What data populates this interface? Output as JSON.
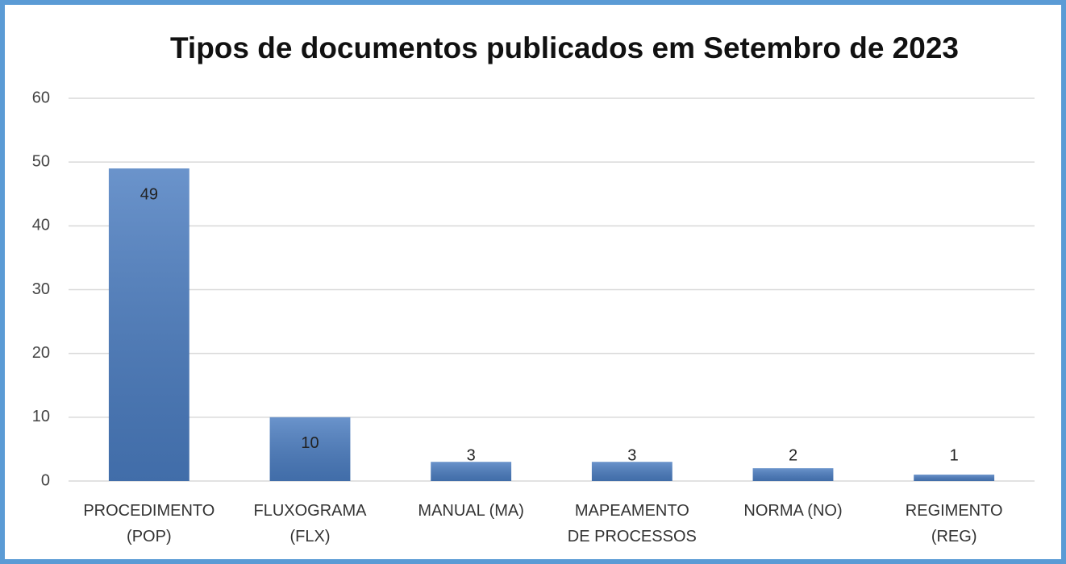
{
  "chart_data": {
    "type": "bar",
    "title": "Tipos de documentos publicados em Setembro de 2023",
    "categories": [
      "PROCEDIMENTO\n(POP)",
      "FLUXOGRAMA\n(FLX)",
      "MANUAL (MA)",
      "MAPEAMENTO\nDE PROCESSOS",
      "NORMA (NO)",
      "REGIMENTO\n(REG)"
    ],
    "values": [
      49,
      10,
      3,
      3,
      2,
      1
    ],
    "color": "#4a7cc0",
    "ylim": [
      0,
      60
    ],
    "yticks": [
      0,
      10,
      20,
      30,
      40,
      50,
      60
    ],
    "grid": true
  }
}
